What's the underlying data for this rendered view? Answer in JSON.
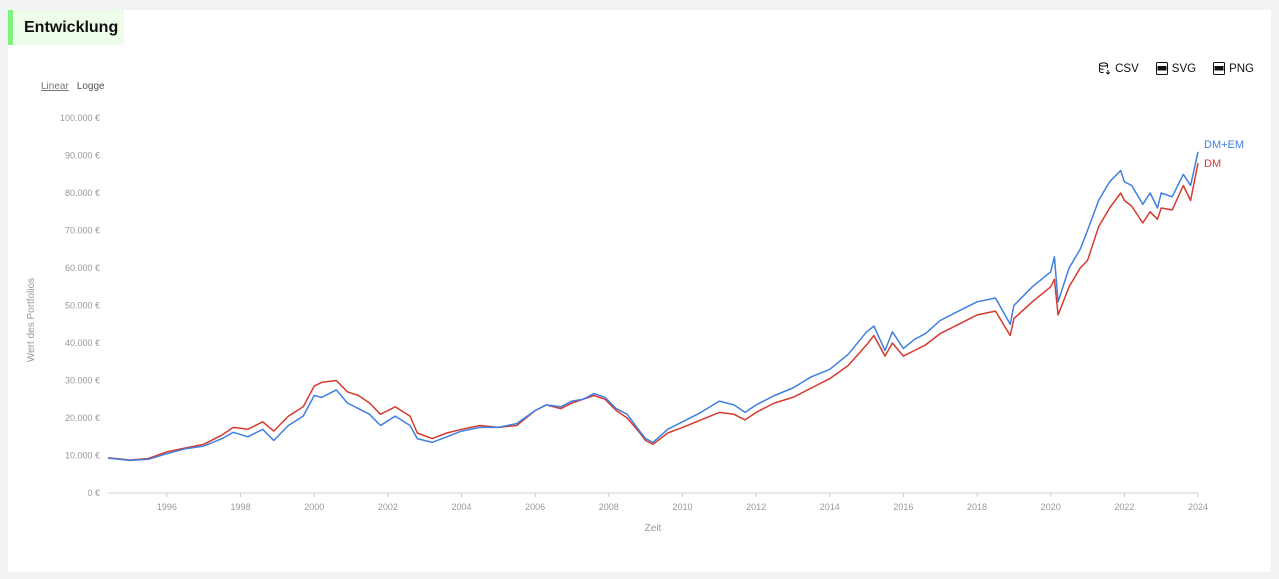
{
  "header": {
    "title": "Entwicklung"
  },
  "scale_toggle": {
    "linear_label": "Linear",
    "log_label": "Logge",
    "active": "Linear"
  },
  "downloads": [
    {
      "label": "CSV",
      "icon": "database-download-icon"
    },
    {
      "label": "SVG",
      "icon": "svg-file-icon"
    },
    {
      "label": "PNG",
      "icon": "png-file-icon"
    }
  ],
  "colors": {
    "dm_em": "#3f7fe0",
    "dm": "#d63a2e",
    "accent": "#7ef27c"
  },
  "chart_data": {
    "type": "line",
    "xlabel": "Zeit",
    "ylabel": "Wert des Portfolios",
    "x_ticks": [
      "1996",
      "1998",
      "2000",
      "2002",
      "2004",
      "2006",
      "2008",
      "2010",
      "2012",
      "2014",
      "2016",
      "2018",
      "2020",
      "2022",
      "2024"
    ],
    "y_ticks": [
      "0 €",
      "10.000 €",
      "20.000 €",
      "30.000 €",
      "40.000 €",
      "50.000 €",
      "60.000 €",
      "70.000 €",
      "80.000 €",
      "90.000 €",
      "100.000 €"
    ],
    "xlim": [
      1994.4,
      2024.0
    ],
    "ylim": [
      0,
      100000
    ],
    "series": [
      {
        "name": "DM+EM",
        "x": [
          1994.4,
          1995.0,
          1995.5,
          1996.0,
          1996.5,
          1997.0,
          1997.5,
          1997.8,
          1998.2,
          1998.6,
          1998.9,
          1999.3,
          1999.7,
          2000.0,
          2000.2,
          2000.6,
          2000.9,
          2001.2,
          2001.5,
          2001.8,
          2002.2,
          2002.6,
          2002.8,
          2003.2,
          2003.6,
          2004.0,
          2004.5,
          2005.0,
          2005.5,
          2006.0,
          2006.3,
          2006.7,
          2007.0,
          2007.3,
          2007.6,
          2007.9,
          2008.2,
          2008.5,
          2008.8,
          2009.0,
          2009.2,
          2009.6,
          2010.0,
          2010.5,
          2011.0,
          2011.4,
          2011.7,
          2012.0,
          2012.5,
          2013.0,
          2013.5,
          2014.0,
          2014.5,
          2015.0,
          2015.2,
          2015.5,
          2015.7,
          2016.0,
          2016.3,
          2016.6,
          2017.0,
          2017.5,
          2018.0,
          2018.5,
          2018.9,
          2019.0,
          2019.5,
          2020.0,
          2020.1,
          2020.2,
          2020.5,
          2020.8,
          2021.0,
          2021.3,
          2021.6,
          2021.9,
          2022.0,
          2022.2,
          2022.5,
          2022.7,
          2022.9,
          2023.0,
          2023.3,
          2023.6,
          2023.8,
          2024.0
        ],
        "y": [
          9300,
          8700,
          9000,
          10500,
          11800,
          12500,
          14500,
          16200,
          15000,
          17000,
          14000,
          18000,
          20500,
          26000,
          25500,
          27500,
          24000,
          22500,
          21000,
          18000,
          20500,
          18000,
          14500,
          13500,
          15000,
          16500,
          17500,
          17500,
          18500,
          22000,
          23500,
          23000,
          24500,
          25000,
          26500,
          25500,
          22500,
          21000,
          17000,
          14500,
          13500,
          17000,
          19000,
          21500,
          24500,
          23500,
          21500,
          23500,
          26000,
          28000,
          31000,
          33000,
          37000,
          43000,
          44500,
          38000,
          43000,
          38500,
          41000,
          42500,
          46000,
          48500,
          51000,
          52000,
          45000,
          50000,
          55000,
          59000,
          63000,
          51000,
          60000,
          65000,
          70000,
          78000,
          83000,
          86000,
          83000,
          82000,
          77000,
          80000,
          76000,
          80000,
          79000,
          85000,
          82000,
          91000
        ]
      },
      {
        "name": "DM",
        "x": [
          1994.4,
          1995.0,
          1995.5,
          1996.0,
          1996.5,
          1997.0,
          1997.5,
          1997.8,
          1998.2,
          1998.6,
          1998.9,
          1999.3,
          1999.7,
          2000.0,
          2000.2,
          2000.6,
          2000.9,
          2001.2,
          2001.5,
          2001.8,
          2002.2,
          2002.6,
          2002.8,
          2003.2,
          2003.6,
          2004.0,
          2004.5,
          2005.0,
          2005.5,
          2006.0,
          2006.3,
          2006.7,
          2007.0,
          2007.3,
          2007.6,
          2007.9,
          2008.2,
          2008.5,
          2008.8,
          2009.0,
          2009.2,
          2009.6,
          2010.0,
          2010.5,
          2011.0,
          2011.4,
          2011.7,
          2012.0,
          2012.5,
          2013.0,
          2013.5,
          2014.0,
          2014.5,
          2015.0,
          2015.2,
          2015.5,
          2015.7,
          2016.0,
          2016.3,
          2016.6,
          2017.0,
          2017.5,
          2018.0,
          2018.5,
          2018.9,
          2019.0,
          2019.5,
          2020.0,
          2020.1,
          2020.2,
          2020.5,
          2020.8,
          2021.0,
          2021.3,
          2021.6,
          2021.9,
          2022.0,
          2022.2,
          2022.5,
          2022.7,
          2022.9,
          2023.0,
          2023.3,
          2023.6,
          2023.8,
          2024.0
        ],
        "y": [
          9400,
          8800,
          9200,
          11000,
          12000,
          13000,
          15500,
          17500,
          17000,
          19000,
          16500,
          20500,
          23000,
          28500,
          29500,
          30000,
          27000,
          26000,
          24000,
          21000,
          23000,
          20500,
          16000,
          14500,
          16000,
          17000,
          18000,
          17500,
          18000,
          22000,
          23500,
          22500,
          24000,
          25000,
          26000,
          25000,
          22000,
          20000,
          16500,
          14000,
          13000,
          16000,
          17500,
          19500,
          21500,
          21000,
          19500,
          21500,
          24000,
          25500,
          28000,
          30500,
          34000,
          39500,
          42000,
          36500,
          40000,
          36500,
          38000,
          39500,
          42500,
          45000,
          47500,
          48500,
          42000,
          46500,
          51000,
          55000,
          57000,
          47500,
          55000,
          60000,
          62000,
          71000,
          76000,
          80000,
          78000,
          76500,
          72000,
          75000,
          73000,
          76000,
          75500,
          82000,
          78000,
          88000
        ]
      }
    ]
  }
}
